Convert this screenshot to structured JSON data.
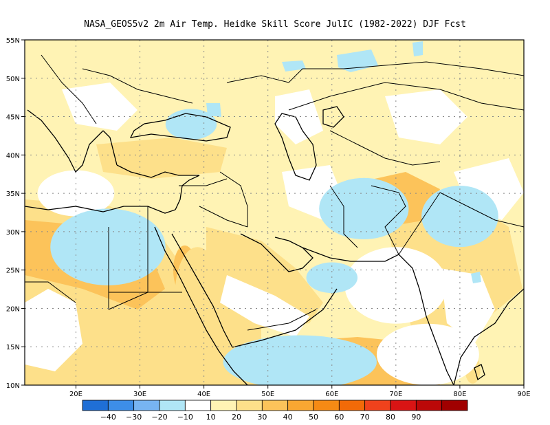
{
  "title": "NASA_GEOS5v2  2m Air Temp. Heidke Skill Score JulIC (1982-2022) DJF Fcst",
  "map": {
    "lon_range": [
      12,
      90
    ],
    "lat_range": [
      10,
      55
    ],
    "lon_ticks": [
      {
        "v": 20,
        "label": "20E"
      },
      {
        "v": 30,
        "label": "30E"
      },
      {
        "v": 40,
        "label": "40E"
      },
      {
        "v": 50,
        "label": "50E"
      },
      {
        "v": 60,
        "label": "60E"
      },
      {
        "v": 70,
        "label": "70E"
      },
      {
        "v": 80,
        "label": "80E"
      },
      {
        "v": 90,
        "label": "90E"
      }
    ],
    "lat_ticks": [
      {
        "v": 10,
        "label": "10N"
      },
      {
        "v": 15,
        "label": "15N"
      },
      {
        "v": 20,
        "label": "20N"
      },
      {
        "v": 25,
        "label": "25N"
      },
      {
        "v": 30,
        "label": "30N"
      },
      {
        "v": 35,
        "label": "35N"
      },
      {
        "v": 40,
        "label": "40N"
      },
      {
        "v": 45,
        "label": "45N"
      },
      {
        "v": 50,
        "label": "50N"
      },
      {
        "v": 55,
        "label": "55N"
      }
    ]
  },
  "colorbar": {
    "colors": [
      "#1f6fd6",
      "#3d8ee8",
      "#77b4f2",
      "#b0e6f6",
      "#ffffff",
      "#fff3b4",
      "#fde08a",
      "#fcc35a",
      "#f9a732",
      "#f58a14",
      "#f26a08",
      "#f0421c",
      "#d91414",
      "#bb0808",
      "#a00000"
    ],
    "labels": [
      "−40",
      "−30",
      "−20",
      "−10",
      "10",
      "20",
      "30",
      "40",
      "50",
      "60",
      "70",
      "80",
      "90"
    ]
  },
  "field": [
    {
      "lon": 40,
      "lat": 21,
      "level": 8,
      "rx": 2.3,
      "ry": 4
    },
    {
      "lon": 37,
      "lat": 25,
      "level": 7,
      "rx": 1.8,
      "ry": 3.2
    },
    {
      "lon": 39,
      "lat": 22,
      "level": 6,
      "rx": 3.5,
      "ry": 6
    },
    {
      "lon": 30,
      "lat": 34,
      "level": 5,
      "rx": 4,
      "ry": 1.6
    },
    {
      "lon": 20,
      "lat": 35,
      "level": 4,
      "rx": 6,
      "ry": 3
    },
    {
      "lon": 82,
      "lat": 12,
      "level": 6,
      "rx": 1.2,
      "ry": 1.8
    },
    {
      "lon": 75,
      "lat": 14,
      "level": 4,
      "rx": 8,
      "ry": 4
    },
    {
      "lon": 55,
      "lat": 13,
      "level": 3,
      "rx": 12,
      "ry": 3.5
    },
    {
      "lon": 70,
      "lat": 23,
      "level": 4,
      "rx": 8,
      "ry": 5
    },
    {
      "lon": 65,
      "lat": 33,
      "level": 3,
      "rx": 7,
      "ry": 4
    },
    {
      "lon": 80,
      "lat": 32,
      "level": 3,
      "rx": 6,
      "ry": 4
    },
    {
      "lon": 38,
      "lat": 44,
      "level": 3,
      "rx": 4,
      "ry": 2
    },
    {
      "lon": 60,
      "lat": 24,
      "level": 3,
      "rx": 4,
      "ry": 2
    },
    {
      "lon": 25,
      "lat": 28,
      "level": 3,
      "rx": 9,
      "ry": 5
    }
  ]
}
